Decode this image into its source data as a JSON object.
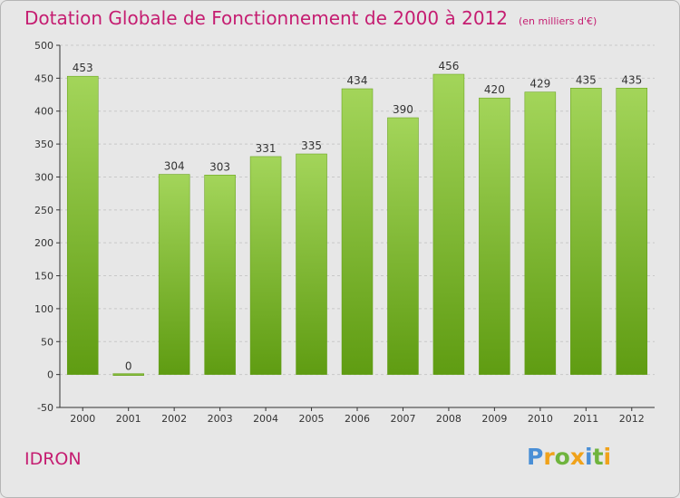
{
  "header": {
    "title": "Dotation Globale de Fonctionnement de 2000 à 2012",
    "unit": "(en milliers d'€)"
  },
  "footer": {
    "commune": "IDRON",
    "logo_text": "Proxiti"
  },
  "colors": {
    "title": "#c51d71",
    "bar_light": "#a3d55a",
    "bar_dark": "#5f9c12",
    "grid": "#c8c8c8",
    "axis": "#333333",
    "background": "#e7e7e7"
  },
  "chart_data": {
    "type": "bar",
    "categories": [
      "2000",
      "2001",
      "2002",
      "2003",
      "2004",
      "2005",
      "2006",
      "2007",
      "2008",
      "2009",
      "2010",
      "2011",
      "2012"
    ],
    "values": [
      453,
      0,
      304,
      303,
      331,
      335,
      434,
      390,
      456,
      420,
      429,
      435,
      435
    ],
    "ylim": [
      -50,
      500
    ],
    "yticks": [
      -50,
      0,
      50,
      100,
      150,
      200,
      250,
      300,
      350,
      400,
      450,
      500
    ],
    "grid": "horizontal dashed",
    "legend": "none"
  }
}
